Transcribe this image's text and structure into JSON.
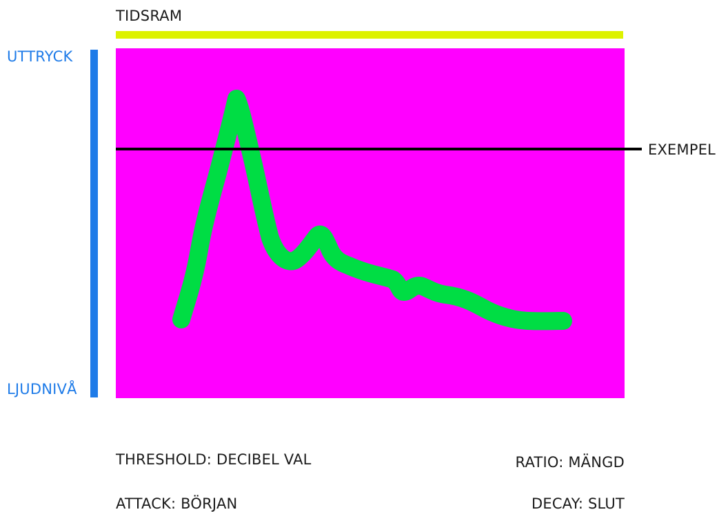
{
  "diagram": {
    "time_label": "TIDSRAM",
    "top_label": "UTTRYCK",
    "bottom_label": "LJUDNIVÅ",
    "reference_label": "EXEMPEL",
    "captions": {
      "threshold": "THRESHOLD: DECIBEL VAL",
      "attack": "ATTACK: BÖRJAN",
      "ratio": "RATIO: MÄNGD",
      "decay": "DECAY: SLUT"
    },
    "colors": {
      "plot_background": "#ff00ff",
      "time_bar": "#ddf200",
      "axis_bar": "#1e7be8",
      "curve": "#00dd44",
      "reference_line": "#000000",
      "axis_labels": "#1e7be8",
      "text": "#1a1a1a"
    }
  }
}
